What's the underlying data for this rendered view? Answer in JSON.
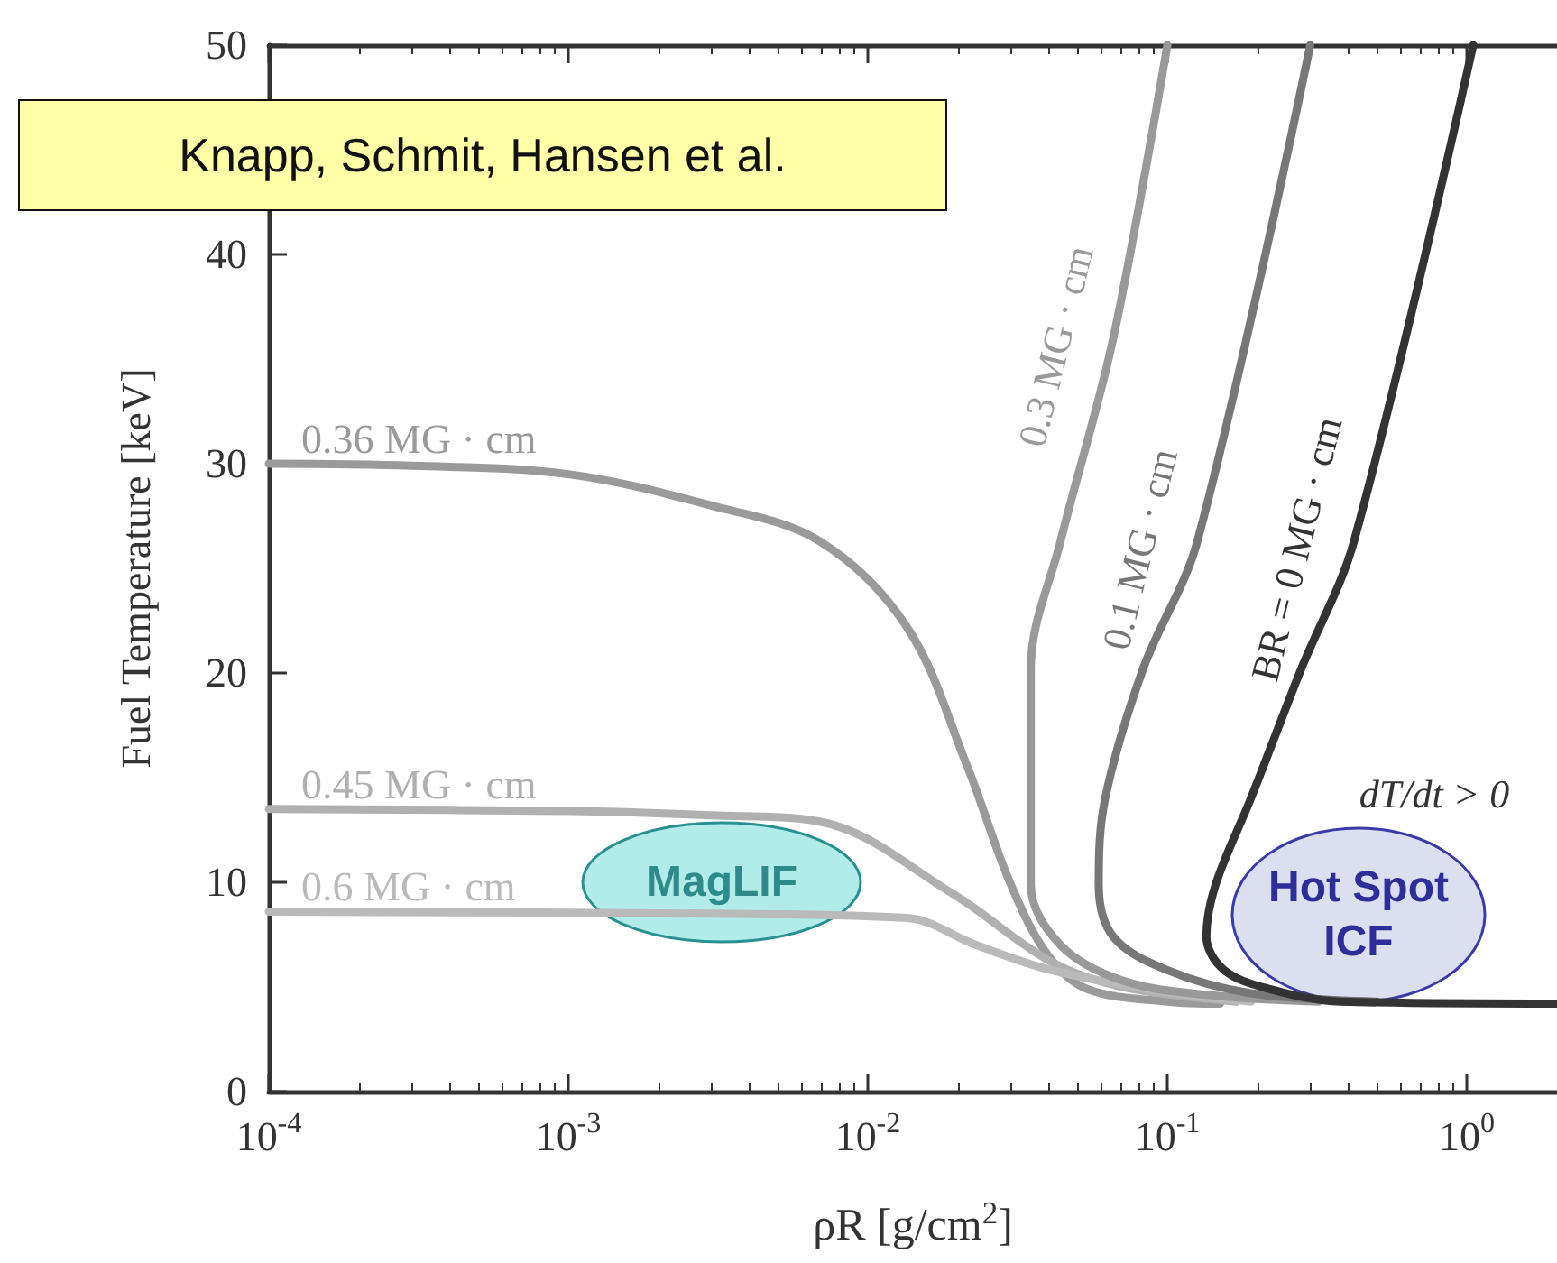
{
  "chart_data": {
    "type": "line",
    "xlabel": "ρR [g/cm$^{2}$]",
    "ylabel": "Fuel Temperature [keV]",
    "log": "x",
    "grid": false,
    "legend": false,
    "marker": "none",
    "line_style": "solid",
    "xlim": [
      0.0001,
      2
    ],
    "xticks": [
      {
        "value": 0.0001,
        "label": "10$^{-4}$"
      },
      {
        "value": 0.001,
        "label": "10$^{-3}$"
      },
      {
        "value": 0.01,
        "label": "10$^{-2}$"
      },
      {
        "value": 0.1,
        "label": "10$^{-1}$"
      },
      {
        "value": 1,
        "label": "10$^{0}$"
      }
    ],
    "ylim": [
      0,
      50
    ],
    "yticks": [
      0,
      10,
      20,
      30,
      40,
      50
    ],
    "series": [
      {
        "name": "0.36 MG · cm",
        "color": "#9a9a9a",
        "x": [
          0.0001,
          0.0003,
          0.001,
          0.003,
          0.0069,
          0.0135,
          0.0214,
          0.03,
          0.04,
          0.054,
          0.1,
          0.15
        ],
        "values": [
          30,
          29.9,
          29.5,
          28,
          26.3,
          22.2,
          15.6,
          9.9,
          6.5,
          4.9,
          4.3,
          4.2
        ]
      },
      {
        "name": "0.45 MG · cm",
        "color": "#b0b0b0",
        "x": [
          0.0001,
          0.001,
          0.003,
          0.0069,
          0.019,
          0.041,
          0.071,
          0.17
        ],
        "values": [
          13.5,
          13.4,
          13.2,
          12.9,
          9.5,
          6.2,
          5,
          4.3
        ]
      },
      {
        "name": "0.6 MG · cm",
        "color": "#bababa",
        "x": [
          0.0001,
          0.003,
          0.0135,
          0.023,
          0.041,
          0.095,
          0.19
        ],
        "values": [
          8.6,
          8.5,
          8.3,
          7,
          5.8,
          4.8,
          4.3
        ]
      },
      {
        "name": "0.3 MG · cm",
        "color": "#999999",
        "x": [
          0.1,
          0.066,
          0.044,
          0.035,
          0.035,
          0.044,
          0.071,
          0.14,
          0.32
        ],
        "values": [
          50,
          36,
          26.3,
          20.2,
          9.9,
          7,
          5.3,
          4.6,
          4.3
        ]
      },
      {
        "name": "0.1 MG · cm",
        "color": "#777777",
        "x": [
          0.3,
          0.126,
          0.083,
          0.062,
          0.059,
          0.066,
          0.1,
          0.19,
          0.5
        ],
        "values": [
          50,
          26.3,
          20.2,
          14,
          9.9,
          7.4,
          5.8,
          4.7,
          4.3
        ]
      },
      {
        "name": "BR = 0 MG · cm",
        "color": "#333333",
        "x": [
          1.05,
          0.42,
          0.28,
          0.19,
          0.145,
          0.135,
          0.155,
          0.22,
          0.38,
          2
        ],
        "values": [
          50,
          26.3,
          20.2,
          14,
          9.9,
          7.4,
          5.8,
          4.9,
          4.3,
          4.2
        ]
      }
    ],
    "annotations": [
      "Knapp, Schmit, Hansen et al.",
      "MagLIF",
      "Hot Spot ICF",
      "dT/dt > 0"
    ]
  }
}
